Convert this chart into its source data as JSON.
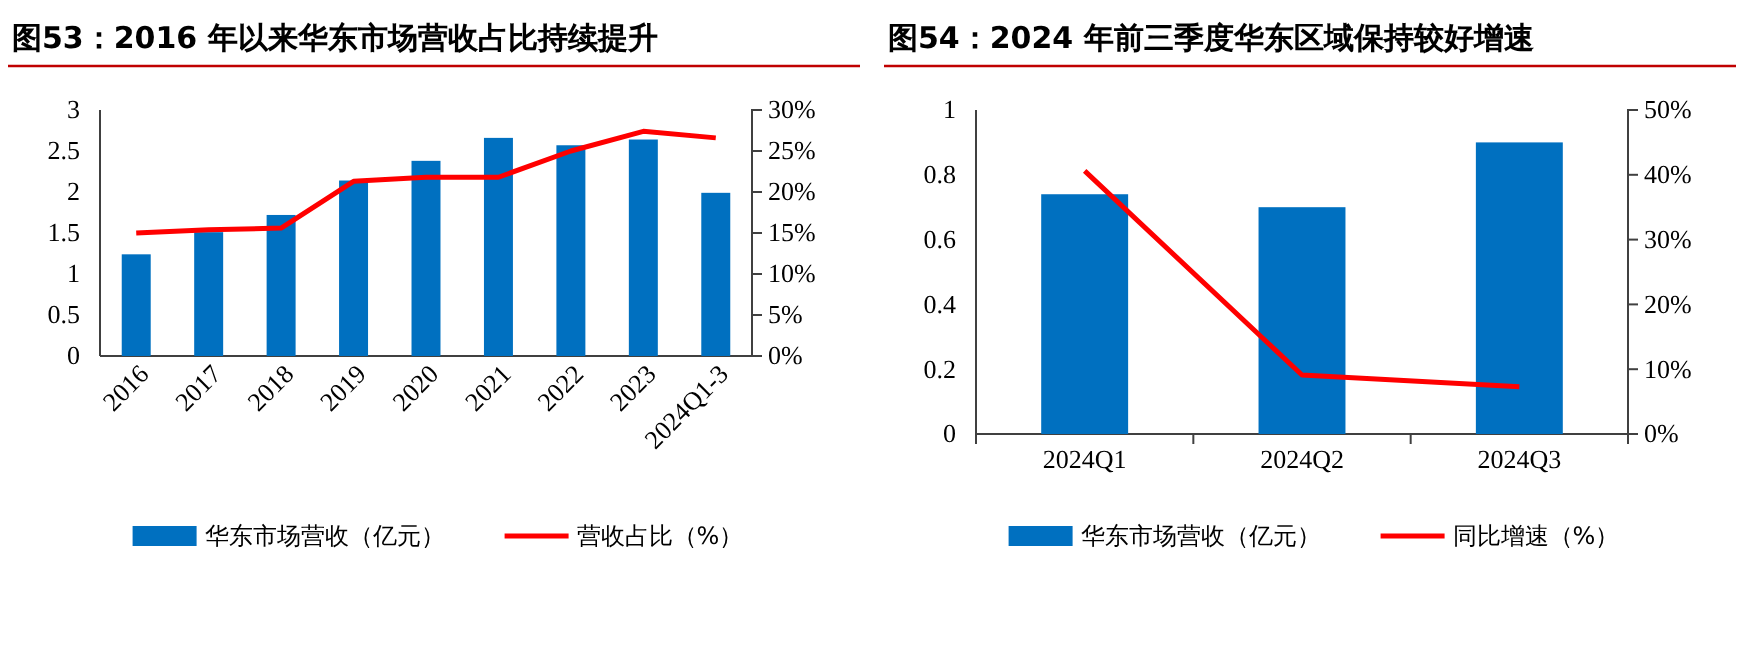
{
  "chart_data": [
    {
      "type": "bar",
      "title": "图53：2016 年以来华东市场营收占比持续提升",
      "categories": [
        "2016",
        "2017",
        "2018",
        "2019",
        "2020",
        "2021",
        "2022",
        "2023",
        "2024Q1-3"
      ],
      "series": [
        {
          "name": "华东市场营收（亿元）",
          "color": "#0070c0",
          "values": [
            1.24,
            1.51,
            1.72,
            2.14,
            2.38,
            2.66,
            2.57,
            2.64,
            1.99
          ]
        },
        {
          "name": "营收占比（%）",
          "type": "line",
          "axis": "y2",
          "color": "#ff0000",
          "values": [
            15.0,
            15.4,
            15.6,
            21.3,
            21.8,
            21.8,
            25.0,
            27.4,
            26.6
          ]
        }
      ],
      "ylim": [
        0,
        3
      ],
      "yticks": [
        0,
        0.5,
        1,
        1.5,
        2,
        2.5,
        3
      ],
      "y2lim": [
        0,
        30
      ],
      "y2ticks": [
        {
          "value": 0,
          "label": "0%"
        },
        {
          "value": 5,
          "label": "5%"
        },
        {
          "value": 10,
          "label": "10%"
        },
        {
          "value": 15,
          "label": "15%"
        },
        {
          "value": 20,
          "label": "20%"
        },
        {
          "value": 25,
          "label": "25%"
        },
        {
          "value": 30,
          "label": "30%"
        }
      ],
      "grid": false,
      "legend": "bottom",
      "marker": "none",
      "line_style": "solid"
    },
    {
      "type": "bar",
      "title": "图54：2024 年前三季度华东区域保持较好增速",
      "categories": [
        "2024Q1",
        "2024Q2",
        "2024Q3"
      ],
      "series": [
        {
          "name": "华东市场营收（亿元）",
          "color": "#0070c0",
          "values": [
            0.74,
            0.7,
            0.9
          ]
        },
        {
          "name": "同比增速（%）",
          "type": "line",
          "axis": "y2",
          "color": "#ff0000",
          "values": [
            40.6,
            9.1,
            7.3
          ]
        }
      ],
      "ylim": [
        0,
        1
      ],
      "yticks": [
        0,
        0.2,
        0.4,
        0.6,
        0.8,
        1
      ],
      "y2lim": [
        0,
        50
      ],
      "y2ticks": [
        {
          "value": 0,
          "label": "0%"
        },
        {
          "value": 10,
          "label": "10%"
        },
        {
          "value": 20,
          "label": "20%"
        },
        {
          "value": 30,
          "label": "30%"
        },
        {
          "value": 40,
          "label": "40%"
        },
        {
          "value": 50,
          "label": "50%"
        }
      ],
      "grid": false,
      "legend": "bottom",
      "marker": "none",
      "line_style": "solid"
    }
  ]
}
